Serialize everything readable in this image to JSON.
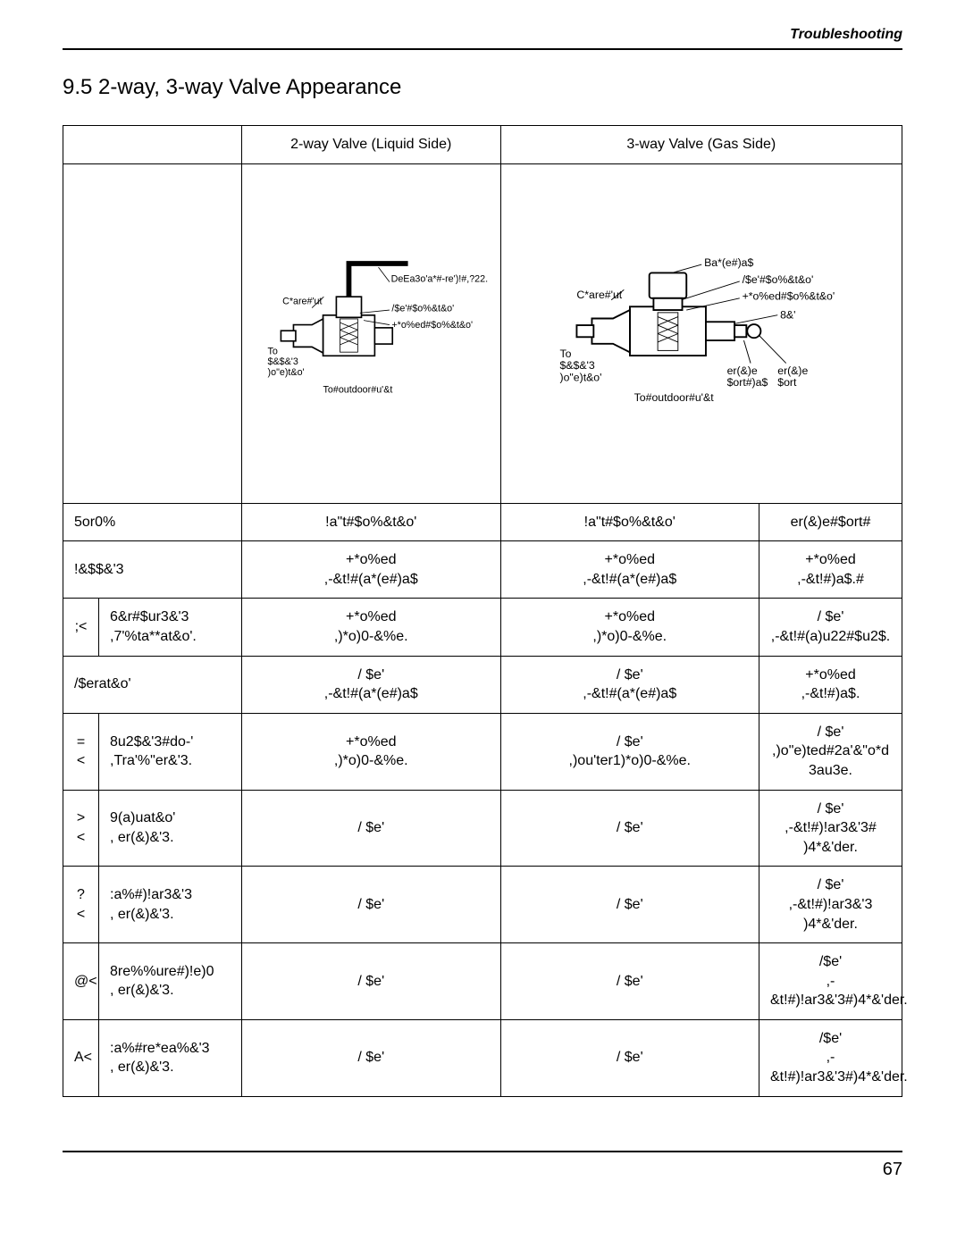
{
  "header": {
    "section": "Troubleshooting"
  },
  "title": "9.5 2-way, 3-way Valve Appearance",
  "columns": {
    "twoway": "2-way Valve (Liquid Side)",
    "threeway": "3-way Valve (Gas Side)"
  },
  "diagrams": {
    "twoway": {
      "hex_wrench": "DeEa3o'a*#-re')!#,?22.",
      "flare_nut": "C*are#'ut",
      "open_pos": "/$e'#$o%&t&o'",
      "closed_pos": "+*o%ed#$o%&t&o'",
      "to_piping": "To\n$&$&'3\n)o\"e)t&o'",
      "to_outdoor": "To#outdoor#u'&t"
    },
    "threeway": {
      "valve_cap": "Ba*(e#)a$",
      "flare_nut": "C*are#'ut",
      "open_pos": "/$e'#$o%&t&o'",
      "closed_pos": "+*o%ed#$o%&t&o'",
      "pin": "8&'",
      "to_piping": "To\n$&$&'3\n)o\"e)t&o'",
      "svc_port_cap": "er(&)e\n$ort#)a$",
      "svc_port": "er(&)e\n$ort",
      "to_outdoor": "To#outdoor#u'&t"
    }
  },
  "header_row": {
    "label": "5or0%",
    "c1": "!a\"t#$o%&t&o'",
    "c2": "!a\"t#$o%&t&o'",
    "c3": "er(&)e#$ort#"
  },
  "rows": [
    {
      "n": "",
      "label": "!&$$&'3",
      "c1": "+*o%ed\n,-&t!#(a*(e#)a$",
      "c2": "+*o%ed\n,-&t!#(a*(e#)a$",
      "c3": "+*o%ed\n,-&t!#)a$.#"
    },
    {
      "n": ";<",
      "label": "6&r#$ur3&'3\n,7'%ta**at&o'.",
      "c1": "+*o%ed\n,)*o)0-&%e.",
      "c2": "+*o%ed\n,)*o)0-&%e.",
      "c3": "/ $e'\n,-&t!#(a)u22#$u2$."
    },
    {
      "n": "",
      "label": "/$erat&o'",
      "c1": "/ $e'\n,-&t!#(a*(e#)a$",
      "c2": "/ $e'\n,-&t!#(a*(e#)a$",
      "c3": "+*o%ed\n,-&t!#)a$."
    },
    {
      "n": "=<",
      "label": "8u2$&'3#do-'\n,Tra'%\"er&'3.",
      "c1": "+*o%ed\n,)*o)0-&%e.",
      "c2": "/ $e'\n,)ou'ter1)*o)0-&%e.",
      "c3": "/ $e'\n,)o\"e)ted#2a'&\"o*d\n3au3e."
    },
    {
      "n": "><",
      "label": "9(a)uat&o'\n, er(&)&'3.",
      "c1": "/ $e'",
      "c2": "/ $e'",
      "c3": "/ $e'\n,-&t!#)!ar3&'3#\n)4*&'der."
    },
    {
      "n": "?<",
      "label": ":a%#)!ar3&'3\n, er(&)&'3.",
      "c1": "/ $e'",
      "c2": "/ $e'",
      "c3": "/ $e'\n,-&t!#)!ar3&'3\n)4*&'der."
    },
    {
      "n": "@<",
      "label": "8re%%ure#)!e)0\n, er(&)&'3.",
      "c1": "/ $e'",
      "c2": "/ $e'",
      "c3": "/$e'\n,-&t!#)!ar3&'3#)4*&'der."
    },
    {
      "n": "A<",
      "label": ":a%#re*ea%&'3\n, er(&)&'3.",
      "c1": "/ $e'",
      "c2": "/ $e'",
      "c3": "/$e'\n,-&t!#)!ar3&'3#)4*&'der."
    }
  ],
  "footer": {
    "page": "67"
  }
}
